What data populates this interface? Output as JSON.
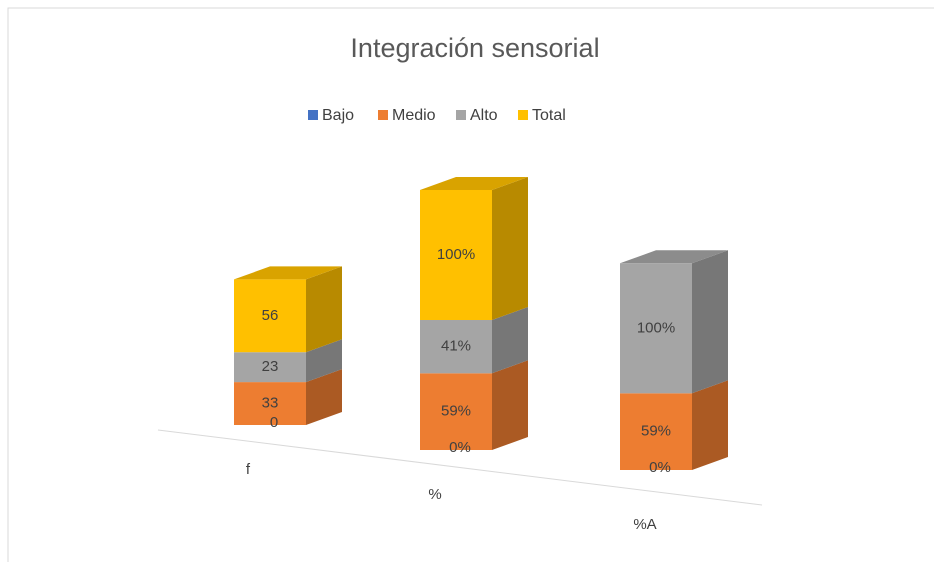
{
  "chart_data": {
    "type": "bar3d_stacked",
    "title": "Integración sensorial",
    "categories": [
      "f",
      "%",
      "%A"
    ],
    "series": [
      {
        "name": "Bajo",
        "color": "#4472c4",
        "values": [
          0,
          0,
          0
        ],
        "value_labels": [
          "0",
          "0%",
          "0%"
        ]
      },
      {
        "name": "Medio",
        "color": "#ed7d31",
        "values": [
          33,
          59,
          59
        ],
        "value_labels": [
          "33",
          "59%",
          "59%"
        ]
      },
      {
        "name": "Alto",
        "color": "#a5a5a5",
        "values": [
          23,
          41,
          100
        ],
        "value_labels": [
          "23",
          "41%",
          "100%"
        ]
      },
      {
        "name": "Total",
        "color": "#ffc000",
        "values": [
          56,
          100,
          null
        ],
        "value_labels": [
          "56",
          "100%",
          null
        ]
      }
    ],
    "legend": "top"
  }
}
